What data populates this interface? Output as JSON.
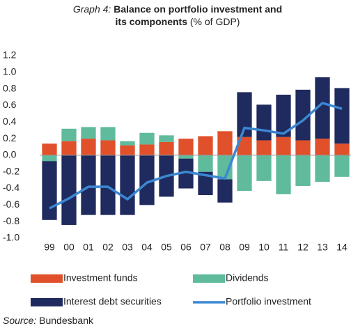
{
  "chart_data": {
    "type": "stacked-bar-line",
    "title": {
      "label": "Graph 4:",
      "text": "Balance on portfolio investment and its components",
      "unit": "(% of GDP)"
    },
    "source": {
      "label": "Source:",
      "text": "Bundesbank"
    },
    "categories": [
      "99",
      "00",
      "01",
      "02",
      "03",
      "04",
      "05",
      "06",
      "07",
      "08",
      "09",
      "10",
      "11",
      "12",
      "13",
      "14"
    ],
    "series": [
      {
        "name": "Investment funds",
        "color": "#e0502a",
        "kind": "bar",
        "values": [
          0.14,
          0.17,
          0.2,
          0.18,
          0.12,
          0.13,
          0.16,
          0.2,
          0.23,
          0.29,
          0.22,
          0.18,
          0.22,
          0.18,
          0.2,
          0.14
        ]
      },
      {
        "name": "Dividends",
        "color": "#5fbb9b",
        "kind": "bar",
        "values": [
          -0.07,
          0.15,
          0.14,
          0.16,
          0.05,
          0.14,
          0.08,
          -0.04,
          -0.2,
          -0.29,
          -0.43,
          -0.31,
          -0.47,
          -0.37,
          -0.32,
          -0.26
        ]
      },
      {
        "name": "Interest debt securities",
        "color": "#1f2a5e",
        "kind": "bar",
        "values": [
          -0.71,
          -0.84,
          -0.72,
          -0.72,
          -0.72,
          -0.6,
          -0.5,
          -0.36,
          -0.28,
          -0.28,
          0.54,
          0.43,
          0.51,
          0.61,
          0.74,
          0.67
        ]
      },
      {
        "name": "Portfolio investment",
        "color": "#3b87d2",
        "kind": "line",
        "values": [
          -0.64,
          -0.52,
          -0.38,
          -0.38,
          -0.53,
          -0.33,
          -0.25,
          -0.2,
          -0.24,
          -0.28,
          0.33,
          0.3,
          0.26,
          0.42,
          0.63,
          0.56
        ]
      }
    ],
    "ylim": [
      -1.0,
      1.2
    ],
    "yticks": [
      1.2,
      {
        "value": 1.0,
        "label": "1.0"
      },
      0.8,
      0.6,
      0.4,
      0.2,
      {
        "value": 0.0,
        "label": "0.0"
      },
      -0.2,
      -0.4,
      -0.6,
      -0.8,
      {
        "value": -1.0,
        "label": "-1.0"
      }
    ]
  }
}
